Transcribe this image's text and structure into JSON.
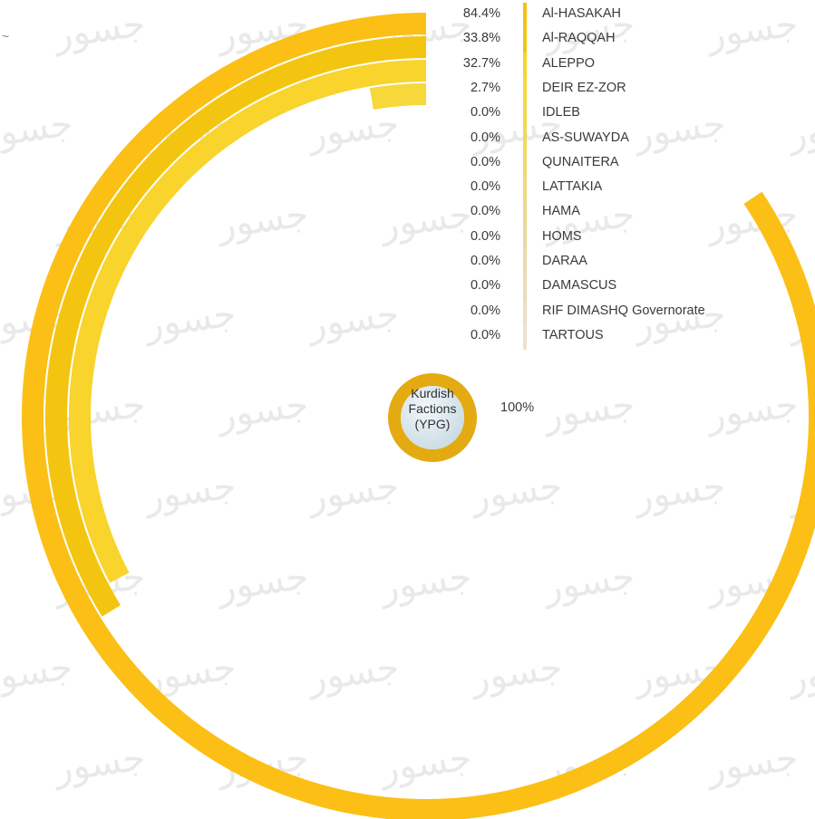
{
  "chart_data": {
    "type": "radial-bar",
    "center_label": "Kurdish\nFactions\n(YPG)",
    "center_value_label": "100%",
    "categories": [
      "Al-HASAKAH",
      "Al-RAQQAH",
      "ALEPPO",
      "DEIR EZ-ZOR",
      "IDLEB",
      "AS-SUWAYDA",
      "QUNAITERA",
      "LATTAKIA",
      "HAMA",
      "HOMS",
      "DARAA",
      "DAMASCUS",
      "RIF DIMASHQ Governorate",
      "TARTOUS"
    ],
    "values": [
      84.4,
      33.8,
      32.7,
      2.7,
      0.0,
      0.0,
      0.0,
      0.0,
      0.0,
      0.0,
      0.0,
      0.0,
      0.0,
      0.0
    ],
    "value_labels": [
      "84.4%",
      "33.8%",
      "32.7%",
      "2.7%",
      "0.0%",
      "0.0%",
      "0.0%",
      "0.0%",
      "0.0%",
      "0.0%",
      "0.0%",
      "0.0%",
      "0.0%",
      "0.0%"
    ],
    "colors": [
      "#fbbf16",
      "#f4c510",
      "#f8d42c",
      "#f6d83a",
      "#f3d84a",
      "#f1d95e",
      "#efd96e",
      "#edd97f",
      "#ebd990",
      "#ead99f",
      "#eadaad",
      "#ebdcb9",
      "#ecdfc5",
      "#eee2cf"
    ],
    "center_ring_color": "#e3aa12"
  },
  "watermark": {
    "text": "جسور"
  },
  "edge_glyph": "~"
}
